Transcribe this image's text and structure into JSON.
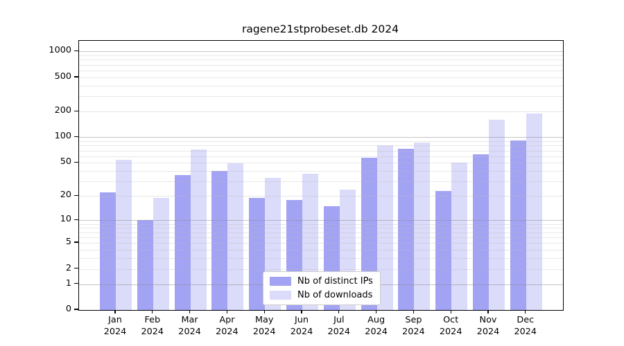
{
  "chart_data": {
    "type": "bar",
    "title": "ragene21stprobeset.db 2024",
    "categories": [
      "Jan 2024",
      "Feb 2024",
      "Mar 2024",
      "Apr 2024",
      "May 2024",
      "Jun 2024",
      "Jul 2024",
      "Aug 2024",
      "Sep 2024",
      "Oct 2024",
      "Nov 2024",
      "Dec 2024"
    ],
    "series": [
      {
        "name": "Nb of distinct IPs",
        "color": "#a3a3f3",
        "values": [
          22,
          10,
          36,
          40,
          19,
          18,
          15,
          57,
          74,
          23,
          63,
          92
        ]
      },
      {
        "name": "Nb of downloads",
        "color": "#dbdbfa",
        "values": [
          54,
          19,
          72,
          49,
          33,
          37,
          24,
          80,
          87,
          50,
          160,
          189
        ]
      }
    ],
    "xlabel": "",
    "ylabel": "",
    "y_ticks": [
      0,
      1,
      2,
      5,
      10,
      20,
      50,
      100,
      200,
      500,
      1000
    ],
    "ylim": [
      0,
      1330
    ],
    "yscale": "log10(1+x)",
    "grid": "horizontal, light minor lines with darker lines at powers of 10",
    "legend_position": "inside, lower center",
    "colors": {
      "background": "#ffffff",
      "major_grid": "#c9c9c9",
      "minor_grid": "#ebebeb",
      "axis": "#000000"
    }
  }
}
